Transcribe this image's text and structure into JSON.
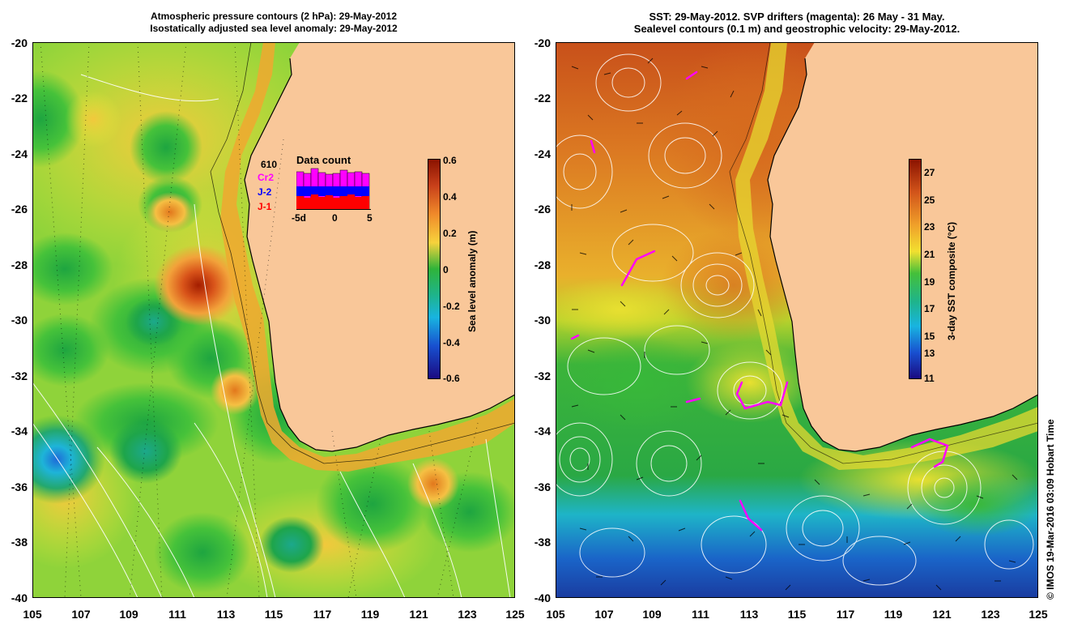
{
  "left_panel": {
    "title_line1": "Atmospheric pressure contours (2 hPa): 29-May-2012",
    "title_line2": "Isostatically adjusted sea level anomaly: 29-May-2012",
    "colorbar": {
      "title": "Sea level anomaly (m)",
      "labels": [
        "0.6",
        "0.4",
        "0.2",
        "0",
        "-0.2",
        "-0.4",
        "-0.6"
      ]
    },
    "data_count": {
      "title": "Data count",
      "count": "610",
      "series": [
        "Cr2",
        "J-2",
        "J-1"
      ],
      "series_colors": [
        "#ff00ff",
        "#0000ff",
        "#ff0000"
      ],
      "axis_labels": [
        "-5d",
        "0",
        "5"
      ]
    }
  },
  "right_panel": {
    "title_line1": "SST: 29-May-2012. SVP drifters (magenta): 26 May - 31 May.",
    "title_line2": "Sealevel contours (0.1 m) and geostrophic velocity: 29-May-2012.",
    "colorbar": {
      "title": "3-day SST composite (°C)",
      "labels": [
        "27",
        "25",
        "23",
        "21",
        "19",
        "17",
        "15",
        "13",
        "11"
      ]
    }
  },
  "axes": {
    "y_labels": [
      "-20",
      "-22",
      "-24",
      "-26",
      "-28",
      "-30",
      "-32",
      "-34",
      "-36",
      "-38",
      "-40"
    ],
    "x_labels": [
      "105",
      "107",
      "109",
      "111",
      "113",
      "115",
      "117",
      "119",
      "121",
      "123",
      "125"
    ]
  },
  "credit": "© IMOS 19-Mar-2016 03:09 Hobart Time",
  "colors": {
    "land": "#f9c799",
    "coast_band": "#d9741a",
    "drifter": "#ff00ff"
  }
}
